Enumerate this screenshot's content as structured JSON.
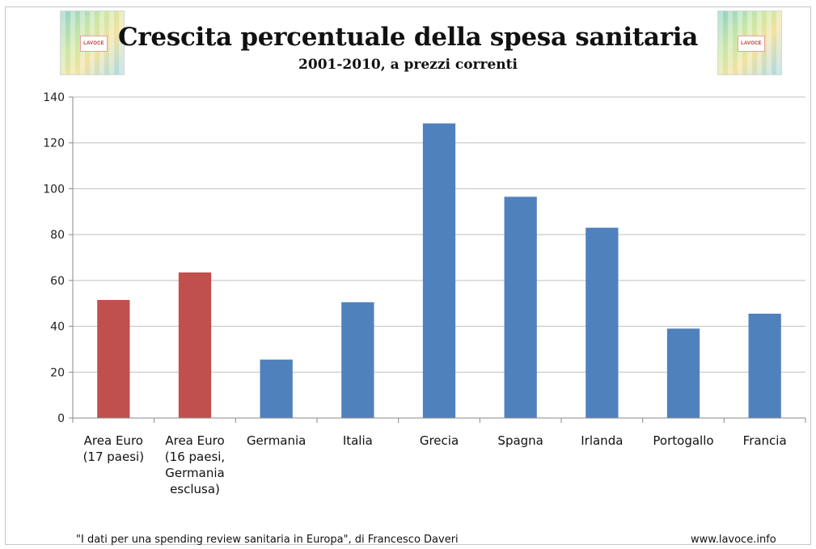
{
  "header": {
    "logo_text": "LAVOCE",
    "title": "Crescita percentuale della spesa sanitaria",
    "subtitle": "2001-2010, a prezzi correnti"
  },
  "chart_data": {
    "type": "bar",
    "categories": [
      [
        "Area Euro",
        "(17 paesi)"
      ],
      [
        "Area Euro",
        "(16 paesi,",
        "Germania",
        "esclusa)"
      ],
      [
        "Germania"
      ],
      [
        "Italia"
      ],
      [
        "Grecia"
      ],
      [
        "Spagna"
      ],
      [
        "Irlanda"
      ],
      [
        "Portogallo"
      ],
      [
        "Francia"
      ]
    ],
    "values": [
      51.5,
      63.5,
      25.5,
      50.5,
      128.5,
      96.5,
      83,
      39,
      45.5
    ],
    "colors": [
      "#c0504d",
      "#c0504d",
      "#4f81bd",
      "#4f81bd",
      "#4f81bd",
      "#4f81bd",
      "#4f81bd",
      "#4f81bd",
      "#4f81bd"
    ],
    "ylim": [
      0,
      140
    ],
    "yticks": [
      0,
      20,
      40,
      60,
      80,
      100,
      120,
      140
    ],
    "grid": true,
    "xlabel": "",
    "ylabel": ""
  },
  "footer": {
    "source": "\"I dati per una spending review sanitaria in Europa\", di Francesco Daveri",
    "website": "www.lavoce.info"
  }
}
